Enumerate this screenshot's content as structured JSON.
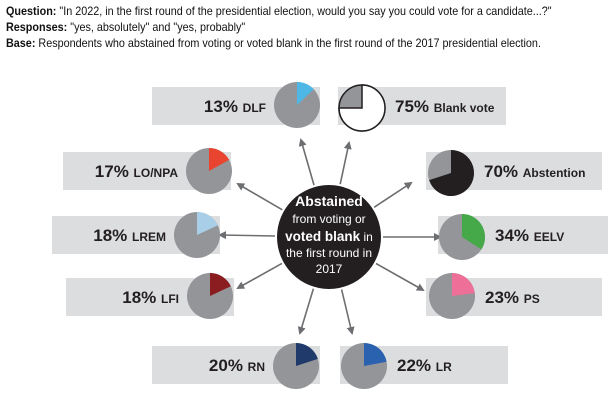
{
  "header": {
    "question_label": "Question:",
    "question_text": "\"In 2022, in the first round of the presidential election, would you say you could vote for a candidate...?\"",
    "responses_label": "Responses:",
    "responses_text": "\"yes, absolutely\" and \"yes, probably\"",
    "base_label": "Base:",
    "base_text": "Respondents who abstained from voting or voted blank in the first round of the 2017 presidential election."
  },
  "center": {
    "line1": "Abstained",
    "line2": "from voting or",
    "line3a": "voted blank",
    "line3b": " in",
    "line4": "the first round in",
    "line5": "2017"
  },
  "colors": {
    "pie_base": "#939598",
    "label_box": "#dcdddf",
    "arrow": "#6d6e71",
    "center_fill": "#231f20"
  },
  "chart_data": {
    "type": "pie",
    "title": "",
    "series": [
      {
        "name": "DLF",
        "pct_label": "13%",
        "value": 13,
        "color": "#4fb7e6"
      },
      {
        "name": "Blank vote",
        "pct_label": "75%",
        "value": 75,
        "color": "#ffffff"
      },
      {
        "name": "LO/NPA",
        "pct_label": "17%",
        "value": 17,
        "color": "#e8442f"
      },
      {
        "name": "Abstention",
        "pct_label": "70%",
        "value": 70,
        "color": "#231f20"
      },
      {
        "name": "LREM",
        "pct_label": "18%",
        "value": 18,
        "color": "#a9cfe8"
      },
      {
        "name": "EELV",
        "pct_label": "34%",
        "value": 34,
        "color": "#45a949"
      },
      {
        "name": "LFI",
        "pct_label": "18%",
        "value": 18,
        "color": "#8b1c20"
      },
      {
        "name": "PS",
        "pct_label": "23%",
        "value": 23,
        "color": "#ee6f97"
      },
      {
        "name": "RN",
        "pct_label": "20%",
        "value": 20,
        "color": "#1f3a6b"
      },
      {
        "name": "LR",
        "pct_label": "22%",
        "value": 22,
        "color": "#2a62b0"
      }
    ]
  }
}
